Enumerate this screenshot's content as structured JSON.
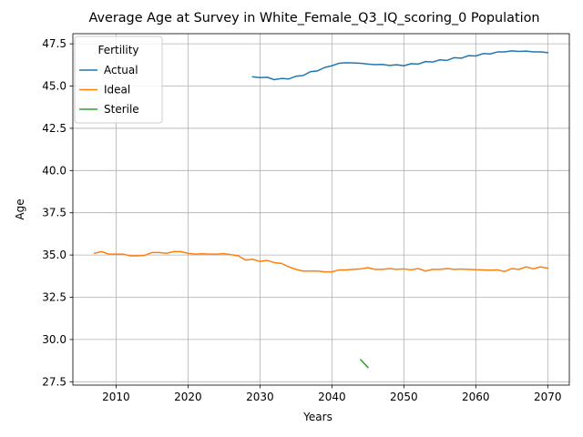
{
  "chart_data": {
    "type": "line",
    "title": "Average Age at Survey in White_Female_Q3_IQ_scoring_0 Population",
    "xlabel": "Years",
    "ylabel": "Age",
    "xlim": [
      2004,
      2073
    ],
    "ylim": [
      27.3,
      48.1
    ],
    "xticks": [
      2010,
      2020,
      2030,
      2040,
      2050,
      2060,
      2070
    ],
    "yticks": [
      27.5,
      30.0,
      32.5,
      35.0,
      37.5,
      40.0,
      42.5,
      45.0,
      47.5
    ],
    "grid": true,
    "legend": {
      "title": "Fertility",
      "placement": "top-left"
    },
    "series": [
      {
        "name": "Actual",
        "color": "#1f77b4",
        "x": [
          2029,
          2030,
          2031,
          2032,
          2033,
          2034,
          2035,
          2036,
          2037,
          2038,
          2039,
          2040,
          2041,
          2042,
          2043,
          2044,
          2045,
          2046,
          2047,
          2048,
          2049,
          2050,
          2051,
          2052,
          2053,
          2054,
          2055,
          2056,
          2057,
          2058,
          2059,
          2060,
          2061,
          2062,
          2063,
          2064,
          2065,
          2066,
          2067,
          2068,
          2069,
          2070
        ],
        "y": [
          45.55,
          45.5,
          45.52,
          45.38,
          45.45,
          45.42,
          45.58,
          45.62,
          45.85,
          45.9,
          46.1,
          46.2,
          46.35,
          46.38,
          46.37,
          46.35,
          46.3,
          46.27,
          46.28,
          46.22,
          46.26,
          46.2,
          46.32,
          46.3,
          46.45,
          46.42,
          46.55,
          46.52,
          46.68,
          46.65,
          46.8,
          46.78,
          46.92,
          46.9,
          47.02,
          47.02,
          47.08,
          47.05,
          47.07,
          47.02,
          47.02,
          46.98
        ]
      },
      {
        "name": "Ideal",
        "color": "#ff7f0e",
        "x": [
          2007,
          2008,
          2009,
          2010,
          2011,
          2012,
          2013,
          2014,
          2015,
          2016,
          2017,
          2018,
          2019,
          2020,
          2021,
          2022,
          2023,
          2024,
          2025,
          2026,
          2027,
          2028,
          2029,
          2030,
          2031,
          2032,
          2033,
          2034,
          2035,
          2036,
          2037,
          2038,
          2039,
          2040,
          2041,
          2042,
          2043,
          2044,
          2045,
          2046,
          2047,
          2048,
          2049,
          2050,
          2051,
          2052,
          2053,
          2054,
          2055,
          2056,
          2057,
          2058,
          2059,
          2060,
          2061,
          2062,
          2063,
          2064,
          2065,
          2066,
          2067,
          2068,
          2069,
          2070
        ],
        "y": [
          35.1,
          35.2,
          35.05,
          35.05,
          35.05,
          34.95,
          34.95,
          34.98,
          35.15,
          35.15,
          35.1,
          35.2,
          35.2,
          35.1,
          35.05,
          35.07,
          35.05,
          35.05,
          35.08,
          35.02,
          34.95,
          34.7,
          34.75,
          34.62,
          34.68,
          34.55,
          34.5,
          34.3,
          34.15,
          34.05,
          34.05,
          34.05,
          34.0,
          34.0,
          34.12,
          34.12,
          34.15,
          34.18,
          34.25,
          34.15,
          34.15,
          34.2,
          34.15,
          34.18,
          34.12,
          34.2,
          34.05,
          34.15,
          34.15,
          34.2,
          34.15,
          34.17,
          34.15,
          34.13,
          34.12,
          34.1,
          34.12,
          34.02,
          34.2,
          34.15,
          34.3,
          34.18,
          34.3,
          34.22
        ]
      },
      {
        "name": "Sterile",
        "color": "#2ca02c",
        "x": [
          2044,
          2045
        ],
        "y": [
          28.8,
          28.35
        ]
      }
    ]
  }
}
